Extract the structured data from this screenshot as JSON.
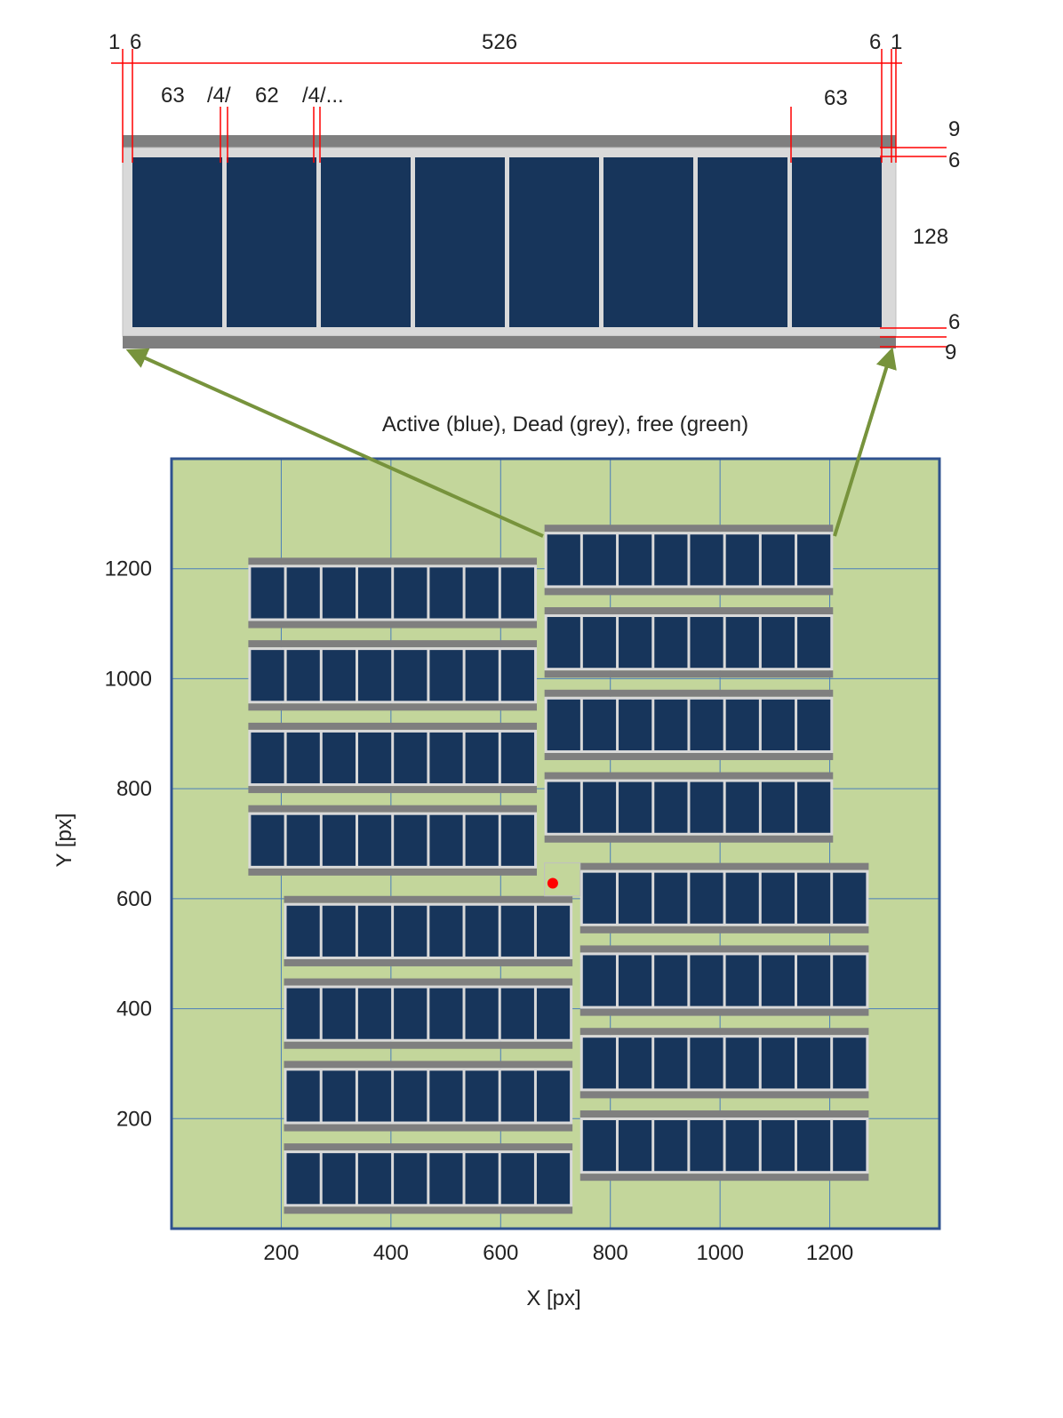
{
  "detail": {
    "dims_top": [
      "1",
      "6",
      "526",
      "6",
      "1"
    ],
    "dims_cells": [
      "63",
      "/4/",
      "62",
      "/4/...",
      "63"
    ],
    "dims_right": [
      "9",
      "6",
      "128",
      "6",
      "9"
    ],
    "cell_count": 8
  },
  "caption": "Active (blue), Dead (grey), free (green)",
  "colors": {
    "active": "#17355b",
    "dead": "#7f7f7f",
    "frame": "#d9d9d9",
    "free": "#c3d69b",
    "grid": "#4a7ebb",
    "border": "#2f528f",
    "dimension": "#ff0000",
    "arrow": "#77933c",
    "marker": "#ff0000"
  },
  "plot": {
    "xlabel": "X [px]",
    "ylabel": "Y [px]",
    "xticks": [
      "200",
      "400",
      "600",
      "800",
      "1000",
      "1200"
    ],
    "yticks": [
      "200",
      "400",
      "600",
      "800",
      "1000",
      "1200"
    ],
    "xlim": [
      0,
      1400
    ],
    "ylim": [
      0,
      1400
    ],
    "marker": {
      "x": 695,
      "y": 628
    },
    "module": {
      "width": 526,
      "height": 128,
      "cells": 8
    },
    "columns": [
      {
        "x": 140,
        "row_tops": [
          1220,
          1070,
          920,
          770
        ]
      },
      {
        "x": 680,
        "row_tops": [
          1280,
          1130,
          980,
          830
        ]
      },
      {
        "x": 205,
        "row_tops": [
          605,
          455,
          305,
          155
        ]
      },
      {
        "x": 745,
        "row_tops": [
          665,
          515,
          365,
          215
        ]
      }
    ],
    "free_spot": {
      "x": 680,
      "y": 605,
      "w": 65,
      "h": 60
    }
  }
}
